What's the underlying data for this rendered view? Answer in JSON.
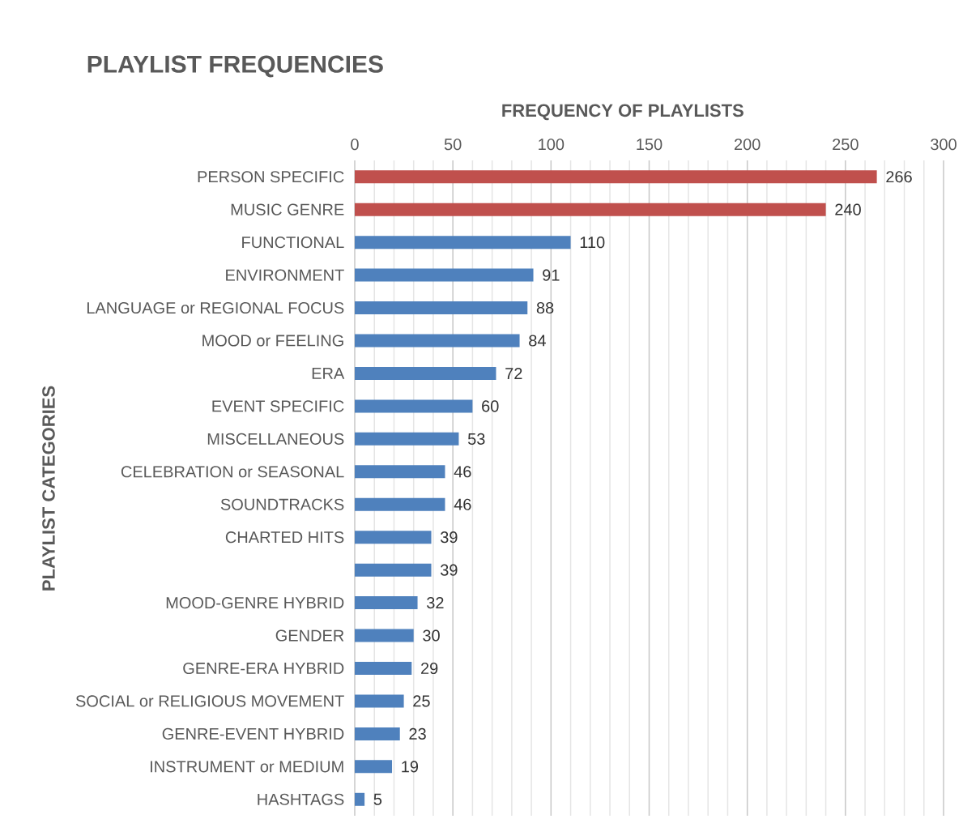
{
  "chart_data": {
    "type": "bar",
    "orientation": "horizontal",
    "title": "PLAYLIST FREQUENCIES",
    "xlabel": "FREQUENCY OF PLAYLISTS",
    "ylabel": "PLAYLIST CATEGORIES",
    "categories": [
      "PERSON SPECIFIC",
      "MUSIC GENRE",
      "FUNCTIONAL",
      "ENVIRONMENT",
      "LANGUAGE or REGIONAL FOCUS",
      "MOOD or FEELING",
      "ERA",
      "EVENT SPECIFIC",
      "MISCELLANEOUS",
      "CELEBRATION or SEASONAL",
      "SOUNDTRACKS",
      "CHARTED HITS",
      null,
      "MOOD-GENRE HYBRID",
      "GENDER",
      "GENRE-ERA HYBRID",
      "SOCIAL or RELIGIOUS MOVEMENT",
      "GENRE-EVENT HYBRID",
      "INSTRUMENT or MEDIUM",
      "HASHTAGS"
    ],
    "values": [
      266,
      240,
      110,
      91,
      88,
      84,
      72,
      60,
      53,
      46,
      46,
      39,
      39,
      32,
      30,
      29,
      25,
      23,
      19,
      5
    ],
    "colors": [
      "#c0504d",
      "#c0504d",
      "#4f81bd",
      "#4f81bd",
      "#4f81bd",
      "#4f81bd",
      "#4f81bd",
      "#4f81bd",
      "#4f81bd",
      "#4f81bd",
      "#4f81bd",
      "#4f81bd",
      "#4f81bd",
      "#4f81bd",
      "#4f81bd",
      "#4f81bd",
      "#4f81bd",
      "#4f81bd",
      "#4f81bd",
      "#4f81bd"
    ],
    "xlim": [
      0,
      300
    ],
    "xticks": [
      0,
      50,
      100,
      150,
      200,
      250,
      300
    ],
    "grid": "x",
    "data_labels": true
  }
}
